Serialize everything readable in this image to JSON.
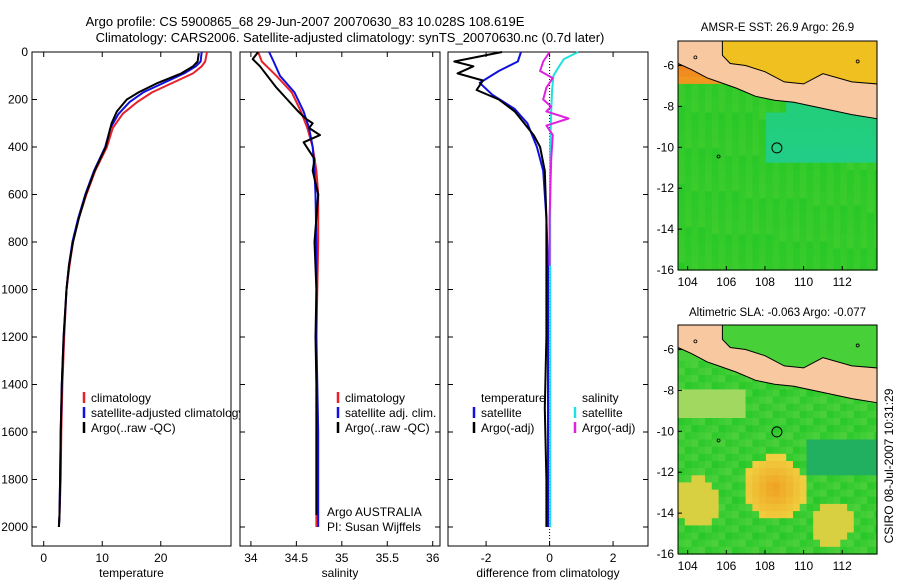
{
  "title": {
    "line1": "Argo profile: CS 5900865_68 29-Jun-2007 20070630_83 10.028S 108.619E",
    "line2": "Climatology: CARS2006. Satellite-adjusted climatology: synTS_20070630.nc (0.7d later)"
  },
  "side_label": "CSIRO 08-Jul-2007 10:31:29",
  "colors": {
    "climatology": "#e8202a",
    "satellite": "#1010e0",
    "argo": "#000000",
    "sat_salinity": "#20e0e0",
    "argo_salinity_diff": "#e020e0",
    "land": "#f8c8a0",
    "ocean_warm": "#f0c020",
    "ocean_green": "#28c828",
    "ocean_teal": "#20d0a0"
  },
  "chart_data": [
    {
      "id": "temperature",
      "type": "line",
      "xlabel": "temperature",
      "ylabel": "",
      "xlim": [
        -2,
        32
      ],
      "ylim": [
        2080,
        0
      ],
      "xticks": [
        0,
        10,
        20
      ],
      "yticks": [
        0,
        200,
        400,
        600,
        800,
        1000,
        1200,
        1400,
        1600,
        1800,
        2000
      ],
      "legend": [
        "climatology",
        "satellite-adjusted climatology",
        "Argo(..raw -QC)"
      ],
      "series": [
        {
          "name": "climatology",
          "color_key": "climatology",
          "x": [
            27.9,
            27.6,
            27.0,
            25.5,
            22.0,
            18.5,
            16.0,
            13.5,
            11.8,
            10.8,
            8.8,
            7.3,
            6.0,
            5.0,
            4.4,
            3.9,
            3.5,
            3.2,
            3.0,
            2.9,
            2.7,
            2.6
          ],
          "y": [
            0,
            40,
            60,
            90,
            130,
            170,
            210,
            260,
            320,
            400,
            500,
            600,
            700,
            800,
            900,
            1000,
            1200,
            1400,
            1600,
            1800,
            1950,
            2000
          ]
        },
        {
          "name": "satellite-adjusted climatology",
          "color_key": "satellite",
          "x": [
            27.0,
            26.8,
            26.0,
            24.0,
            20.5,
            17.0,
            14.7,
            12.8,
            11.4,
            10.5,
            8.6,
            7.1,
            5.9,
            4.9,
            4.3,
            3.9,
            3.4,
            3.1,
            2.9,
            2.8,
            2.7,
            2.6
          ],
          "y": [
            0,
            40,
            60,
            90,
            130,
            170,
            210,
            260,
            320,
            400,
            500,
            600,
            700,
            800,
            900,
            1000,
            1200,
            1400,
            1600,
            1800,
            1950,
            2000
          ]
        },
        {
          "name": "Argo(..raw -QC)",
          "color_key": "argo",
          "x": [
            26.5,
            26.3,
            25.5,
            23.5,
            19.5,
            16.2,
            14.2,
            12.5,
            11.6,
            10.6,
            8.7,
            7.2,
            6.0,
            5.0,
            4.3,
            3.9,
            3.4,
            3.1,
            2.9,
            2.8,
            2.7,
            2.6
          ],
          "y": [
            5,
            40,
            60,
            90,
            130,
            170,
            200,
            250,
            300,
            400,
            500,
            600,
            700,
            800,
            900,
            1000,
            1200,
            1400,
            1600,
            1800,
            1950,
            2000
          ]
        }
      ]
    },
    {
      "id": "salinity",
      "type": "line",
      "xlabel": "salinity",
      "ylabel": "",
      "xlim": [
        33.88,
        36.08
      ],
      "ylim": [
        2080,
        0
      ],
      "xticks": [
        34,
        34.5,
        35,
        35.5,
        36
      ],
      "xticklabels": [
        "34",
        "34.5",
        "35",
        "35.5",
        "36"
      ],
      "legend": [
        "climatology",
        "satellite adj. clim.",
        "Argo(..raw -QC)"
      ],
      "annotations": [
        "Argo AUSTRALIA",
        "PI: Susan Wijffels"
      ],
      "series": [
        {
          "name": "climatology",
          "color_key": "climatology",
          "x": [
            34.08,
            34.12,
            34.28,
            34.45,
            34.55,
            34.62,
            34.68,
            34.72,
            34.74,
            34.74,
            34.73,
            34.72,
            34.72,
            34.72,
            34.72,
            34.72,
            34.72
          ],
          "y": [
            0,
            40,
            100,
            170,
            250,
            320,
            400,
            500,
            600,
            800,
            1000,
            1200,
            1400,
            1600,
            1800,
            1950,
            2000
          ]
        },
        {
          "name": "satellite adj. clim.",
          "color_key": "satellite",
          "x": [
            34.2,
            34.25,
            34.32,
            34.48,
            34.58,
            34.64,
            34.68,
            34.7,
            34.71,
            34.72,
            34.72,
            34.72,
            34.73,
            34.74,
            34.74,
            34.74,
            34.74
          ],
          "y": [
            0,
            40,
            100,
            170,
            250,
            320,
            400,
            500,
            600,
            800,
            1000,
            1200,
            1400,
            1600,
            1800,
            1950,
            2000
          ]
        },
        {
          "name": "Argo(..raw -QC)",
          "color_key": "argo",
          "x": [
            34.08,
            34.02,
            34.1,
            34.18,
            34.28,
            34.4,
            34.52,
            34.6,
            34.68,
            34.64,
            34.76,
            34.58,
            34.7,
            34.68,
            34.74,
            34.7,
            34.72,
            34.71,
            34.72,
            34.72,
            34.72
          ],
          "y": [
            0,
            30,
            60,
            100,
            150,
            200,
            250,
            280,
            300,
            320,
            350,
            380,
            450,
            500,
            600,
            800,
            1000,
            1200,
            1400,
            1600,
            1950
          ]
        }
      ]
    },
    {
      "id": "difference",
      "type": "line",
      "xlabel": "difference from climatology",
      "ylabel": "",
      "xlim": [
        -3.2,
        3.1
      ],
      "ylim": [
        2080,
        0
      ],
      "xticks": [
        -2,
        0,
        2
      ],
      "legend_groups": {
        "left_title": "temperature",
        "right_title": "salinity",
        "left": [
          "satellite",
          "Argo(-adj)"
        ],
        "right": [
          "satellite",
          "Argo(-adj)"
        ]
      },
      "series": [
        {
          "name": "temperature satellite",
          "color_key": "satellite",
          "x": [
            -0.9,
            -1.0,
            -1.6,
            -2.2,
            -1.8,
            -1.1,
            -0.7,
            -0.4,
            -0.2,
            -0.1,
            -0.05,
            -0.05,
            -0.05,
            -0.05,
            -0.05,
            -0.05
          ],
          "y": [
            0,
            40,
            80,
            130,
            180,
            240,
            300,
            400,
            500,
            700,
            900,
            1200,
            1500,
            1700,
            1900,
            2000
          ]
        },
        {
          "name": "temperature Argo(-adj)",
          "color_key": "argo",
          "x": [
            -1.5,
            -3.0,
            -2.4,
            -2.9,
            -2.1,
            -2.3,
            -1.6,
            -1.1,
            -0.8,
            -0.5,
            -0.3,
            -0.15,
            -0.1,
            -0.1,
            -0.1,
            -0.15,
            -0.1,
            -0.1
          ],
          "y": [
            0,
            40,
            60,
            90,
            120,
            160,
            200,
            250,
            300,
            350,
            400,
            500,
            700,
            900,
            1200,
            1500,
            1800,
            2000
          ]
        },
        {
          "name": "salinity satellite",
          "color_key": "sat_salinity",
          "x": [
            0.9,
            0.45,
            0.3,
            0.12,
            0.08,
            0.05,
            0.02,
            0.02,
            0.02,
            0.02,
            0.02,
            0.02
          ],
          "y": [
            0,
            30,
            60,
            100,
            160,
            250,
            400,
            700,
            1000,
            1400,
            1800,
            2000
          ]
        },
        {
          "name": "salinity Argo(-adj)",
          "color_key": "argo_salinity_diff",
          "x": [
            0.0,
            -0.2,
            -0.3,
            0.1,
            -0.1,
            -0.2,
            0.05,
            -0.1,
            0.6,
            -0.1,
            0.1,
            0.05,
            0.0,
            0.0
          ],
          "y": [
            0,
            40,
            80,
            110,
            150,
            200,
            230,
            250,
            280,
            310,
            350,
            450,
            700,
            900
          ]
        }
      ]
    },
    {
      "id": "sst_map",
      "type": "heatmap",
      "title": "AMSR-E SST: 26.9  Argo: 26.9",
      "xlim": [
        103.5,
        113.8
      ],
      "ylim": [
        -16,
        -4.8
      ],
      "xticks": [
        104,
        106,
        108,
        110,
        112
      ],
      "yticks": [
        -6,
        -8,
        -10,
        -12,
        -14,
        -16
      ],
      "marker": {
        "lon": 108.619,
        "lat": -10.028
      }
    },
    {
      "id": "sla_map",
      "type": "heatmap",
      "title": "Altimetric SLA: -0.063  Argo: -0.077",
      "xlim": [
        103.5,
        113.8
      ],
      "ylim": [
        -16,
        -4.8
      ],
      "xticks": [
        104,
        106,
        108,
        110,
        112
      ],
      "yticks": [
        -6,
        -8,
        -10,
        -12,
        -14,
        -16
      ],
      "marker": {
        "lon": 108.619,
        "lat": -10.028
      }
    }
  ]
}
